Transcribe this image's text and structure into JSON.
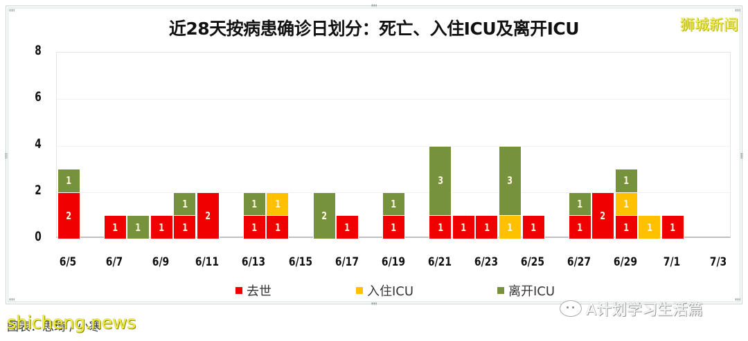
{
  "header": {
    "title": "近28天按病患确诊日划分：死亡、入住ICU及离开ICU",
    "watermark": "狮城新闻"
  },
  "legend": [
    {
      "label": "去世",
      "color": "#f00000"
    },
    {
      "label": "入住ICU",
      "color": "#ffc000"
    },
    {
      "label": "离开ICU",
      "color": "#76923c"
    }
  ],
  "footer": {
    "source": "图表：思琦 / 小寒",
    "source_watermark": "shicheng.news",
    "wechat_account": "A计划学习生活篇"
  },
  "chart_data": {
    "type": "bar",
    "stacked": true,
    "title": "近28天按病患确诊日划分：死亡、入住ICU及离开ICU",
    "xlabel": "",
    "ylabel": "",
    "ylim": [
      0,
      8
    ],
    "yticks": [
      "0",
      "2",
      "4",
      "6",
      "8"
    ],
    "xtick_labels": [
      "6/5",
      "6/7",
      "6/9",
      "6/11",
      "6/13",
      "6/15",
      "6/17",
      "6/19",
      "6/21",
      "6/23",
      "6/25",
      "6/27",
      "6/29",
      "7/1",
      "7/3"
    ],
    "legend_position": "bottom",
    "grid": true,
    "categories": [
      "6/5",
      "6/6",
      "6/7",
      "6/8",
      "6/9",
      "6/10",
      "6/11",
      "6/12",
      "6/13",
      "6/14",
      "6/15",
      "6/16",
      "6/17",
      "6/18",
      "6/19",
      "6/20",
      "6/21",
      "6/22",
      "6/23",
      "6/24",
      "6/25",
      "6/26",
      "6/27",
      "6/28",
      "6/29",
      "6/30",
      "7/1",
      "7/2",
      "7/3"
    ],
    "series": [
      {
        "name": "去世",
        "color": "#f00000",
        "values": [
          2,
          0,
          1,
          0,
          1,
          1,
          2,
          0,
          1,
          1,
          0,
          0,
          1,
          0,
          1,
          0,
          1,
          1,
          1,
          0,
          1,
          0,
          1,
          2,
          1,
          0,
          1,
          0,
          0
        ]
      },
      {
        "name": "入住ICU",
        "color": "#ffc000",
        "values": [
          0,
          0,
          0,
          0,
          0,
          0,
          0,
          0,
          0,
          1,
          0,
          0,
          0,
          0,
          0,
          0,
          0,
          0,
          0,
          1,
          0,
          0,
          0,
          0,
          1,
          1,
          0,
          0,
          0
        ]
      },
      {
        "name": "离开ICU",
        "color": "#76923c",
        "values": [
          1,
          0,
          0,
          1,
          0,
          1,
          0,
          0,
          1,
          0,
          0,
          2,
          0,
          0,
          1,
          0,
          3,
          0,
          0,
          3,
          0,
          0,
          1,
          0,
          1,
          0,
          0,
          0,
          0
        ]
      }
    ]
  }
}
